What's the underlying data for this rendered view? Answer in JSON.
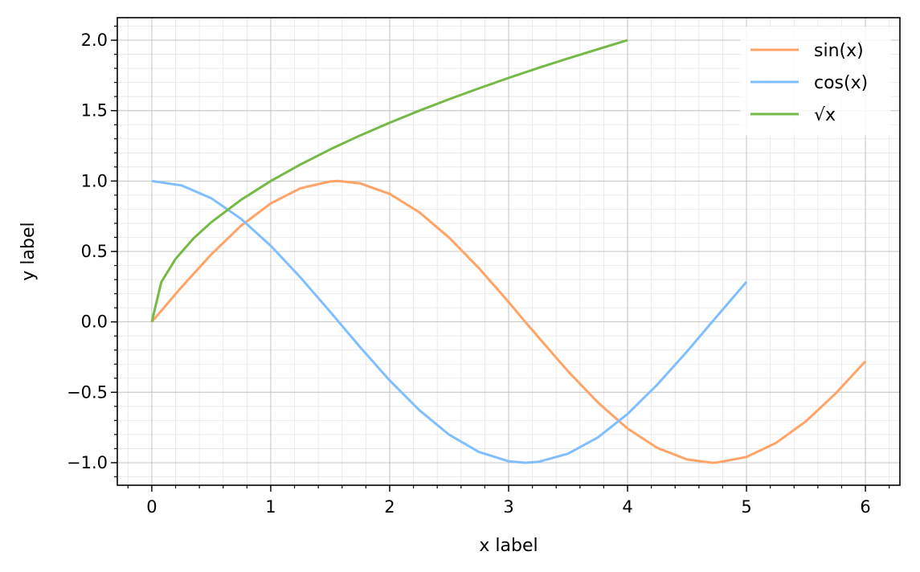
{
  "chart_data": {
    "type": "line",
    "xlabel": "x label",
    "ylabel": "y label",
    "xlim": [
      -0.29,
      6.29
    ],
    "ylim": [
      -1.16,
      2.16
    ],
    "xticks": [
      {
        "value": 0,
        "label": "0"
      },
      {
        "value": 1,
        "label": "1"
      },
      {
        "value": 2,
        "label": "2"
      },
      {
        "value": 3,
        "label": "3"
      },
      {
        "value": 4,
        "label": "4"
      },
      {
        "value": 5,
        "label": "5"
      },
      {
        "value": 6,
        "label": "6"
      }
    ],
    "yticks": [
      {
        "value": -1.0,
        "label": "−1.0"
      },
      {
        "value": -0.5,
        "label": "−0.5"
      },
      {
        "value": 0.0,
        "label": "0.0"
      },
      {
        "value": 0.5,
        "label": "0.5"
      },
      {
        "value": 1.0,
        "label": "1.0"
      },
      {
        "value": 1.5,
        "label": "1.5"
      },
      {
        "value": 2.0,
        "label": "2.0"
      }
    ],
    "grid": true,
    "minor_grid": true,
    "legend_position": "top-right",
    "series": [
      {
        "name": "sin(x)",
        "color": "#FFA366",
        "x": [
          0,
          0.25,
          0.5,
          0.75,
          1.0,
          1.25,
          1.5,
          1.57,
          1.75,
          2.0,
          2.25,
          2.5,
          2.75,
          3.0,
          3.14,
          3.25,
          3.5,
          3.75,
          4.0,
          4.25,
          4.5,
          4.71,
          4.75,
          5.0,
          5.25,
          5.5,
          5.75,
          6.0
        ],
        "y": [
          0,
          0.247,
          0.479,
          0.682,
          0.841,
          0.949,
          0.997,
          1.0,
          0.984,
          0.909,
          0.778,
          0.598,
          0.382,
          0.141,
          0.0,
          -0.108,
          -0.351,
          -0.572,
          -0.757,
          -0.895,
          -0.977,
          -1.0,
          -0.999,
          -0.959,
          -0.859,
          -0.706,
          -0.508,
          -0.279
        ]
      },
      {
        "name": "cos(x)",
        "color": "#80BFFF",
        "x": [
          0,
          0.25,
          0.5,
          0.75,
          1.0,
          1.25,
          1.5,
          1.75,
          2.0,
          2.25,
          2.5,
          2.75,
          3.0,
          3.14,
          3.25,
          3.5,
          3.75,
          4.0,
          4.25,
          4.5,
          4.75,
          5.0
        ],
        "y": [
          1.0,
          0.969,
          0.878,
          0.732,
          0.54,
          0.315,
          0.071,
          -0.178,
          -0.416,
          -0.628,
          -0.801,
          -0.924,
          -0.99,
          -1.0,
          -0.994,
          -0.936,
          -0.821,
          -0.654,
          -0.446,
          -0.211,
          0.038,
          0.284
        ]
      },
      {
        "name": "√x",
        "color": "#76B947",
        "x": [
          0,
          0.08,
          0.2,
          0.35,
          0.5,
          0.75,
          1.0,
          1.25,
          1.5,
          1.75,
          2.0,
          2.25,
          2.5,
          2.75,
          3.0,
          3.25,
          3.5,
          3.75,
          4.0
        ],
        "y": [
          0,
          0.283,
          0.447,
          0.592,
          0.707,
          0.866,
          1.0,
          1.118,
          1.225,
          1.323,
          1.414,
          1.5,
          1.581,
          1.658,
          1.732,
          1.803,
          1.871,
          1.936,
          2.0
        ]
      }
    ]
  }
}
